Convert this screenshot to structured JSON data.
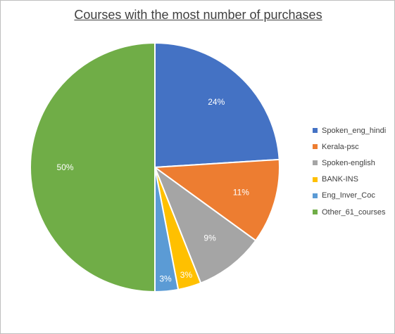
{
  "chart_data": {
    "type": "pie",
    "title": "Courses with the most number of purchases",
    "categories": [
      "Spoken_eng_hindi",
      "Kerala-psc",
      "Spoken-english",
      "BANK-INS",
      "Eng_Inver_Coc",
      "Other_61_courses"
    ],
    "values": [
      24,
      11,
      9,
      3,
      3,
      50
    ],
    "labels": [
      "24%",
      "11%",
      "9%",
      "3%",
      "3%",
      "50%"
    ],
    "colors": [
      "#4472C4",
      "#ED7D31",
      "#A5A5A5",
      "#FFC000",
      "#5B9BD5",
      "#70AD47"
    ],
    "legend_position": "right",
    "start_angle": "12 o'clock",
    "direction": "clockwise"
  }
}
